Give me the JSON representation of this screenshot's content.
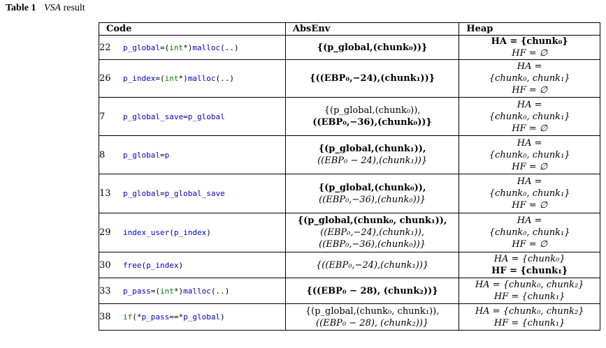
{
  "caption": {
    "label": "Table 1",
    "title_italic": "VSA",
    "title_rest": "result"
  },
  "headers": {
    "code": "Code",
    "absenv": "AbsEnv",
    "heap": "Heap"
  },
  "rows": [
    {
      "line": "22",
      "code": "p_global=(int*)malloc(..)",
      "abs": [
        "{(p_global,(chunk₀))}"
      ],
      "heap": [
        "HA = {chunk₀}",
        "HF = ∅"
      ]
    },
    {
      "line": "26",
      "code": "p_index=(int*)malloc(..)",
      "abs": [
        "{((EBP₀,−24),(chunk₁))}"
      ],
      "heap": [
        "HA =",
        "{chunk₀, chunk₁}",
        "HF = ∅"
      ]
    },
    {
      "line": "7",
      "code": "p_global_save=p_global",
      "abs": [
        "{(p_global,(chunk₀)),",
        "((EBP₀,−36),(chunk₀))}"
      ],
      "heap": [
        "HA =",
        "{chunk₀, chunk₁}",
        "HF = ∅"
      ]
    },
    {
      "line": "8",
      "code": "p_global=p",
      "abs": [
        "{(p_global,(chunk₁)),",
        "((EBP₀ − 24),(chunk₁))}"
      ],
      "heap": [
        "HA =",
        "{chunk₀, chunk₁}",
        "HF = ∅"
      ]
    },
    {
      "line": "13",
      "code": "p_global=p_global_save",
      "abs": [
        "{(p_global,(chunk₀)),",
        "((EBP₀,−36),(chunk₀))}"
      ],
      "heap": [
        "HA =",
        "{chunk₀, chunk₁}",
        "HF = ∅"
      ]
    },
    {
      "line": "29",
      "code": "index_user(p_index)",
      "abs": [
        "{(p_global,(chunk₀, chunk₁)),",
        "((EBP₀,−24),(chunk₁)),",
        "((EBP₀,−36),(chunk₀))}"
      ],
      "heap": [
        "HA =",
        "{chunk₀, chunk₁}",
        "HF = ∅"
      ]
    },
    {
      "line": "30",
      "code": "free(p_index)",
      "abs": [
        "{((EBP₀,−24),(chunk₁))}"
      ],
      "heap": [
        "HA = {chunk₀}",
        "HF = {chunk₁}"
      ]
    },
    {
      "line": "33",
      "code": "p_pass=(int*)malloc(..)",
      "abs": [
        "{((EBP₀ − 28), (chunk₂))}"
      ],
      "heap": [
        "HA = {chunk₀, chunk₂}",
        "HF = {chunk₁}"
      ]
    },
    {
      "line": "38",
      "code": "if(*p_pass==*p_global)",
      "abs": [
        "{(p_global,(chunk₀, chunk₁)),",
        "((EBP₀ − 28), (chunk₂))}"
      ],
      "heap": [
        "HA = {chunk₀, chunk₂}",
        "HF = {chunk₁}"
      ]
    }
  ]
}
